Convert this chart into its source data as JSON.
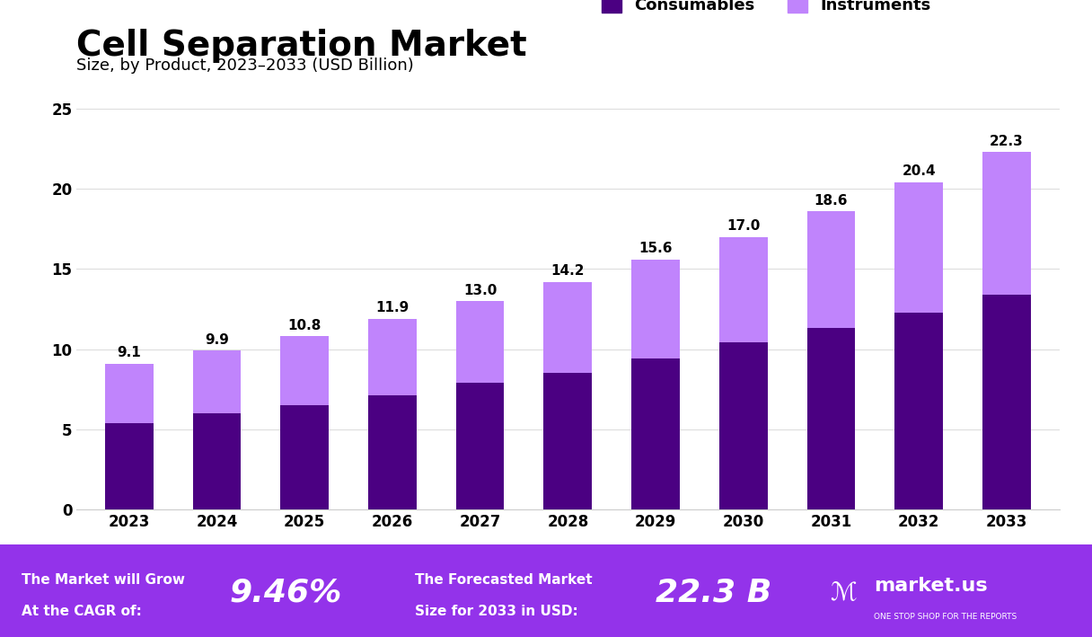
{
  "years": [
    "2023",
    "2024",
    "2025",
    "2026",
    "2027",
    "2028",
    "2029",
    "2030",
    "2031",
    "2032",
    "2033"
  ],
  "totals": [
    9.1,
    9.9,
    10.8,
    11.9,
    13.0,
    14.2,
    15.6,
    17.0,
    18.6,
    20.4,
    22.3
  ],
  "consumables": [
    5.4,
    6.0,
    6.5,
    7.1,
    7.9,
    8.5,
    9.4,
    10.4,
    11.3,
    12.3,
    13.4
  ],
  "instruments_color": "#c084fc",
  "consumables_color": "#4B0082",
  "bar_width": 0.55,
  "title": "Cell Separation Market",
  "subtitle": "Size, by Product, 2023–2033 (USD Billion)",
  "ylabel_ticks": [
    0,
    5,
    10,
    15,
    20,
    25
  ],
  "ylim": [
    0,
    27
  ],
  "legend_consumables": "Consumables",
  "legend_instruments": "Instruments",
  "footer_bg": "#9333ea",
  "footer_text1": "The Market will Grow\nAt the CAGR of:",
  "footer_highlight1": "9.46%",
  "footer_text2": "The Forecasted Market\nSize for 2033 in USD:",
  "footer_highlight2": "22.3 B",
  "footer_brand": "market.us",
  "footer_brand_sub": "ONE STOP SHOP FOR THE REPORTS",
  "bg_color": "#ffffff"
}
